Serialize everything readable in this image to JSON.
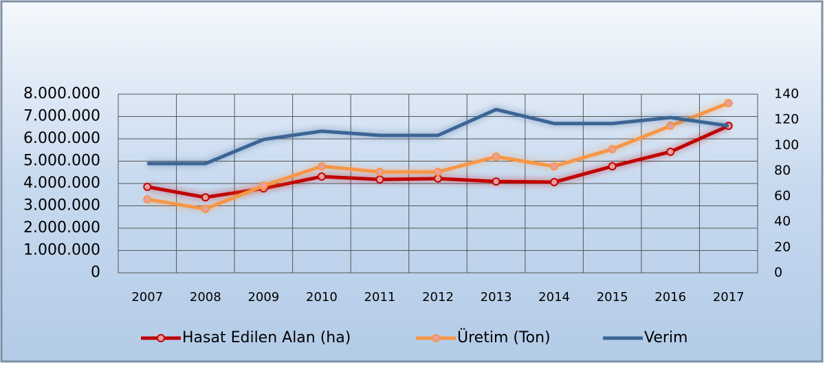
{
  "chart_data": {
    "type": "line",
    "categories": [
      "2007",
      "2008",
      "2009",
      "2010",
      "2011",
      "2012",
      "2013",
      "2014",
      "2015",
      "2016",
      "2017"
    ],
    "series": [
      {
        "name": "Hasat Edilen Alan (ha)",
        "color": "#c00000",
        "marker": true,
        "values": [
          3850000,
          3380000,
          3780000,
          4310000,
          4180000,
          4220000,
          4090000,
          4060000,
          4770000,
          5420000,
          6580000
        ]
      },
      {
        "name": "Üretim (Ton)",
        "color": "#f79646",
        "marker": true,
        "values": [
          3290000,
          2860000,
          3900000,
          4770000,
          4520000,
          4520000,
          5200000,
          4770000,
          5540000,
          6580000,
          7600000
        ]
      },
      {
        "name": "Verim",
        "color": "#3c6595",
        "marker": false,
        "axis": "y2",
        "values": [
          85.6,
          85.6,
          104.5,
          111,
          107.7,
          107.7,
          128,
          117,
          117,
          121.7,
          115.2
        ]
      }
    ],
    "ylim": [
      0,
      8000000
    ],
    "yticks": [
      0,
      {
        "value": 1000000,
        "label": "1.000.000"
      },
      {
        "value": 2000000,
        "label": "2.000.000"
      },
      {
        "value": 3000000,
        "label": "3.000.000"
      },
      {
        "value": 4000000,
        "label": "4.000.000"
      },
      {
        "value": 5000000,
        "label": "5.000.000"
      },
      {
        "value": 6000000,
        "label": "6.000.000"
      },
      {
        "value": 7000000,
        "label": "7.000.000"
      },
      {
        "value": 8000000,
        "label": "8.000.000"
      }
    ],
    "y2lim": [
      0,
      140
    ],
    "y2ticks": [
      0,
      20,
      40,
      60,
      80,
      100,
      120,
      140
    ],
    "grid": true,
    "legend": "bottom"
  }
}
